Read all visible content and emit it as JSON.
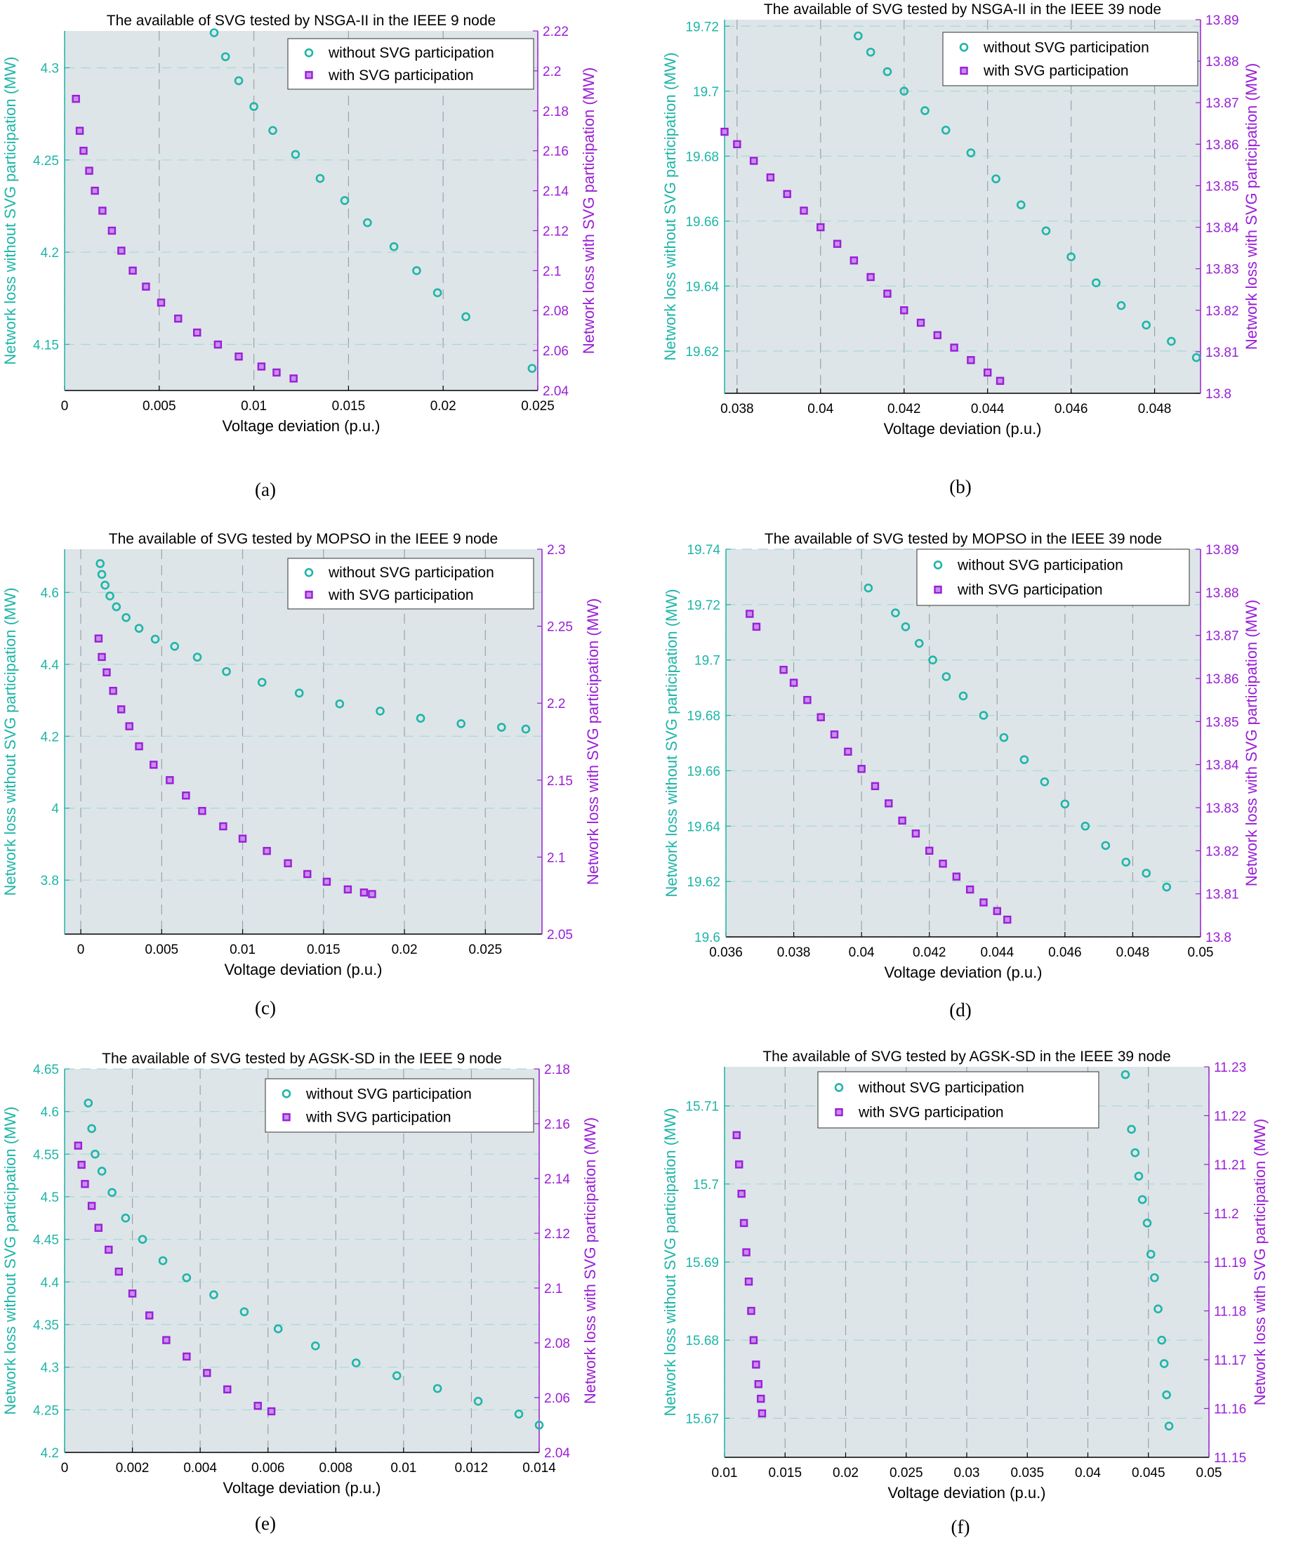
{
  "colors": {
    "without": "#1fb5a8",
    "with": "#9a1fd6",
    "plot_bg": "#dde5e8",
    "grid": "#9aa3a8"
  },
  "chart_data": [
    {
      "type": "scatter",
      "title": "The available of SVG tested by NSGA-II  in the IEEE 9 node",
      "caption": "(a)",
      "xlabel": "Voltage deviation (p.u.)",
      "ylabel_left": "Network loss without SVG participation (MW)",
      "ylabel_right": "Network loss with SVG participation (MW)",
      "xlim": [
        0,
        0.025
      ],
      "ylim_left": [
        4.125,
        4.32
      ],
      "ylim_right": [
        2.04,
        2.22
      ],
      "xticks": [
        "0",
        "0.005",
        "0.01",
        "0.015",
        "0.02",
        "0.025"
      ],
      "yticks_left": [
        "4.15",
        "4.2",
        "4.25",
        "4.3"
      ],
      "yticks_right": [
        "2.04",
        "2.06",
        "2.08",
        "2.1",
        "2.12",
        "2.14",
        "2.16",
        "2.18",
        "2.2",
        "2.22"
      ],
      "legend": [
        "without SVG participation",
        "with SVG participation"
      ],
      "series": [
        {
          "name": "without SVG participation",
          "axis": "left",
          "marker": "circle",
          "x": [
            0.0079,
            0.0085,
            0.0092,
            0.01,
            0.011,
            0.0122,
            0.0135,
            0.0148,
            0.016,
            0.0174,
            0.0186,
            0.0197,
            0.0212,
            0.0247
          ],
          "y": [
            4.319,
            4.306,
            4.293,
            4.279,
            4.266,
            4.253,
            4.24,
            4.228,
            4.216,
            4.203,
            4.19,
            4.178,
            4.165,
            4.137
          ]
        },
        {
          "name": "with SVG participation",
          "axis": "right",
          "marker": "square",
          "x": [
            0.0006,
            0.0008,
            0.001,
            0.0013,
            0.0016,
            0.002,
            0.0025,
            0.003,
            0.0036,
            0.0043,
            0.0051,
            0.006,
            0.007,
            0.0081,
            0.0092,
            0.0104,
            0.0112,
            0.0121
          ],
          "y": [
            2.186,
            2.17,
            2.16,
            2.15,
            2.14,
            2.13,
            2.12,
            2.11,
            2.1,
            2.092,
            2.084,
            2.076,
            2.069,
            2.063,
            2.057,
            2.052,
            2.049,
            2.046
          ]
        }
      ]
    },
    {
      "type": "scatter",
      "title": "The available of SVG tested by NSGA-II  in the IEEE 39 node",
      "caption": "(b)",
      "xlabel": "Voltage deviation (p.u.)",
      "ylabel_left": "Network loss without SVG participation (MW)",
      "ylabel_right": "Network loss with SVG participation (MW)",
      "xlim": [
        0.0377,
        0.0491
      ],
      "ylim_left": [
        19.607,
        19.722
      ],
      "ylim_right": [
        13.8,
        13.89
      ],
      "xticks": [
        "0.038",
        "0.04",
        "0.042",
        "0.044",
        "0.046",
        "0.048"
      ],
      "yticks_left": [
        "19.62",
        "19.64",
        "19.66",
        "19.68",
        "19.7",
        "19.72"
      ],
      "yticks_right": [
        "13.8",
        "13.81",
        "13.82",
        "13.83",
        "13.84",
        "13.85",
        "13.86",
        "13.87",
        "13.88",
        "13.89"
      ],
      "legend": [
        "without SVG participation",
        "with SVG participation"
      ],
      "series": [
        {
          "name": "without SVG participation",
          "axis": "left",
          "marker": "circle",
          "x": [
            0.0409,
            0.0412,
            0.0416,
            0.042,
            0.0425,
            0.043,
            0.0436,
            0.0442,
            0.0448,
            0.0454,
            0.046,
            0.0466,
            0.0472,
            0.0478,
            0.0484,
            0.049
          ],
          "y": [
            19.717,
            19.712,
            19.706,
            19.7,
            19.694,
            19.688,
            19.681,
            19.673,
            19.665,
            19.657,
            19.649,
            19.641,
            19.634,
            19.628,
            19.623,
            19.618
          ]
        },
        {
          "name": "with SVG participation",
          "axis": "right",
          "marker": "square",
          "x": [
            0.0377,
            0.038,
            0.0384,
            0.0388,
            0.0392,
            0.0396,
            0.04,
            0.0404,
            0.0408,
            0.0412,
            0.0416,
            0.042,
            0.0424,
            0.0428,
            0.0432,
            0.0436,
            0.044,
            0.0443
          ],
          "y": [
            13.863,
            13.86,
            13.856,
            13.852,
            13.848,
            13.844,
            13.84,
            13.836,
            13.832,
            13.828,
            13.824,
            13.82,
            13.817,
            13.814,
            13.811,
            13.808,
            13.805,
            13.803
          ]
        }
      ]
    },
    {
      "type": "scatter",
      "title": "The available of SVG tested by MOPSO  in the IEEE 9 node",
      "caption": "(c)",
      "xlabel": "Voltage deviation (p.u.)",
      "ylabel_left": "Network loss without SVG participation (MW)",
      "ylabel_right": "Network loss with SVG participation (MW)",
      "xlim": [
        -0.001,
        0.0285
      ],
      "ylim_left": [
        3.65,
        4.72
      ],
      "ylim_right": [
        2.05,
        2.3
      ],
      "xticks": [
        "0",
        "0.005",
        "0.01",
        "0.015",
        "0.02",
        "0.025"
      ],
      "yticks_left": [
        "3.8",
        "4",
        "4.2",
        "4.4",
        "4.6"
      ],
      "yticks_right": [
        "2.05",
        "2.1",
        "2.15",
        "2.2",
        "2.25",
        "2.3"
      ],
      "legend": [
        "without SVG participation",
        "with SVG participation"
      ],
      "series": [
        {
          "name": "without SVG participation",
          "axis": "left",
          "marker": "circle",
          "x": [
            0.0012,
            0.0013,
            0.0015,
            0.0018,
            0.0022,
            0.0028,
            0.0036,
            0.0046,
            0.0058,
            0.0072,
            0.009,
            0.0112,
            0.0135,
            0.016,
            0.0185,
            0.021,
            0.0235,
            0.026,
            0.0275
          ],
          "y": [
            4.68,
            4.65,
            4.62,
            4.59,
            4.56,
            4.53,
            4.5,
            4.47,
            4.45,
            4.42,
            4.38,
            4.35,
            4.32,
            4.29,
            4.27,
            4.25,
            4.235,
            4.225,
            4.22
          ]
        },
        {
          "name": "with SVG participation",
          "axis": "right",
          "marker": "square",
          "x": [
            0.0011,
            0.0013,
            0.0016,
            0.002,
            0.0025,
            0.003,
            0.0036,
            0.0045,
            0.0055,
            0.0065,
            0.0075,
            0.0088,
            0.01,
            0.0115,
            0.0128,
            0.014,
            0.0152,
            0.0165,
            0.0175,
            0.018
          ],
          "y": [
            2.242,
            2.23,
            2.22,
            2.208,
            2.196,
            2.185,
            2.172,
            2.16,
            2.15,
            2.14,
            2.13,
            2.12,
            2.112,
            2.104,
            2.096,
            2.089,
            2.084,
            2.079,
            2.077,
            2.076
          ]
        }
      ]
    },
    {
      "type": "scatter",
      "title": "The available of SVG tested by MOPSO  in the IEEE 39 node",
      "caption": "(d)",
      "xlabel": "Voltage deviation (p.u.)",
      "ylabel_left": "Network loss without SVG participation (MW)",
      "ylabel_right": "Network loss with SVG participation (MW)",
      "xlim": [
        0.036,
        0.05
      ],
      "ylim_left": [
        19.6,
        19.74
      ],
      "ylim_right": [
        13.8,
        13.89
      ],
      "xticks": [
        "0.036",
        "0.038",
        "0.04",
        "0.042",
        "0.044",
        "0.046",
        "0.048",
        "0.05"
      ],
      "yticks_left": [
        "19.6",
        "19.62",
        "19.64",
        "19.66",
        "19.68",
        "19.7",
        "19.72",
        "19.74"
      ],
      "yticks_right": [
        "13.8",
        "13.81",
        "13.82",
        "13.83",
        "13.84",
        "13.85",
        "13.86",
        "13.87",
        "13.88",
        "13.89"
      ],
      "legend": [
        "without SVG participation",
        "with SVG participation"
      ],
      "series": [
        {
          "name": "without SVG participation",
          "axis": "left",
          "marker": "circle",
          "x": [
            0.0402,
            0.041,
            0.0413,
            0.0417,
            0.0421,
            0.0425,
            0.043,
            0.0436,
            0.0442,
            0.0448,
            0.0454,
            0.046,
            0.0466,
            0.0472,
            0.0478,
            0.0484,
            0.049
          ],
          "y": [
            19.726,
            19.717,
            19.712,
            19.706,
            19.7,
            19.694,
            19.687,
            19.68,
            19.672,
            19.664,
            19.656,
            19.648,
            19.64,
            19.633,
            19.627,
            19.623,
            19.618
          ]
        },
        {
          "name": "with SVG participation",
          "axis": "right",
          "marker": "square",
          "x": [
            0.0367,
            0.0369,
            0.0377,
            0.038,
            0.0384,
            0.0388,
            0.0392,
            0.0396,
            0.04,
            0.0404,
            0.0408,
            0.0412,
            0.0416,
            0.042,
            0.0424,
            0.0428,
            0.0432,
            0.0436,
            0.044,
            0.0443
          ],
          "y": [
            13.875,
            13.872,
            13.862,
            13.859,
            13.855,
            13.851,
            13.847,
            13.843,
            13.839,
            13.835,
            13.831,
            13.827,
            13.824,
            13.82,
            13.817,
            13.814,
            13.811,
            13.808,
            13.806,
            13.804
          ]
        }
      ]
    },
    {
      "type": "scatter",
      "title": "The available of SVG tested by AGSK-SD  in the IEEE 9 node",
      "caption": "(e)",
      "xlabel": "Voltage deviation (p.u.)",
      "ylabel_left": "Network loss without SVG participation (MW)",
      "ylabel_right": "Network loss with SVG participation (MW)",
      "xlim": [
        0,
        0.014
      ],
      "ylim_left": [
        4.2,
        4.65
      ],
      "ylim_right": [
        2.04,
        2.18
      ],
      "xticks": [
        "0",
        "0.002",
        "0.004",
        "0.006",
        "0.008",
        "0.01",
        "0.012",
        "0.014"
      ],
      "yticks_left": [
        "4.2",
        "4.25",
        "4.3",
        "4.35",
        "4.4",
        "4.45",
        "4.5",
        "4.55",
        "4.6",
        "4.65"
      ],
      "yticks_right": [
        "2.04",
        "2.06",
        "2.08",
        "2.1",
        "2.12",
        "2.14",
        "2.16",
        "2.18"
      ],
      "legend": [
        "without SVG participation",
        "with SVG participation"
      ],
      "series": [
        {
          "name": "without SVG participation",
          "axis": "left",
          "marker": "circle",
          "x": [
            0.0007,
            0.0008,
            0.0009,
            0.0011,
            0.0014,
            0.0018,
            0.0023,
            0.0029,
            0.0036,
            0.0044,
            0.0053,
            0.0063,
            0.0074,
            0.0086,
            0.0098,
            0.011,
            0.0122,
            0.0134,
            0.014
          ],
          "y": [
            4.61,
            4.58,
            4.55,
            4.53,
            4.505,
            4.475,
            4.45,
            4.425,
            4.405,
            4.385,
            4.365,
            4.345,
            4.325,
            4.305,
            4.29,
            4.275,
            4.26,
            4.245,
            4.232
          ]
        },
        {
          "name": "with SVG participation",
          "axis": "right",
          "marker": "square",
          "x": [
            0.0004,
            0.0005,
            0.0006,
            0.0008,
            0.001,
            0.0013,
            0.0016,
            0.002,
            0.0025,
            0.003,
            0.0036,
            0.0042,
            0.0048,
            0.0057,
            0.0061
          ],
          "y": [
            2.152,
            2.145,
            2.138,
            2.13,
            2.122,
            2.114,
            2.106,
            2.098,
            2.09,
            2.081,
            2.075,
            2.069,
            2.063,
            2.057,
            2.055
          ]
        }
      ]
    },
    {
      "type": "scatter",
      "title": "The available of SVG tested by AGSK-SD  in the IEEE 39 node",
      "caption": "(f)",
      "xlabel": "Voltage deviation (p.u.)",
      "ylabel_left": "Network loss without SVG participation (MW)",
      "ylabel_right": "Network loss with SVG participation (MW)",
      "xlim": [
        0.01,
        0.05
      ],
      "ylim_left": [
        15.665,
        15.715
      ],
      "ylim_right": [
        11.15,
        11.23
      ],
      "xticks": [
        "0.01",
        "0.015",
        "0.02",
        "0.025",
        "0.03",
        "0.035",
        "0.04",
        "0.045",
        "0.05"
      ],
      "yticks_left": [
        "15.67",
        "15.68",
        "15.69",
        "15.7",
        "15.71"
      ],
      "yticks_right": [
        "11.15",
        "11.16",
        "11.17",
        "11.18",
        "11.19",
        "11.2",
        "11.21",
        "11.22",
        "11.23"
      ],
      "legend": [
        "without SVG participation",
        "with SVG participation"
      ],
      "series": [
        {
          "name": "without SVG participation",
          "axis": "left",
          "marker": "circle",
          "x": [
            0.0431,
            0.0436,
            0.0439,
            0.0442,
            0.0445,
            0.0449,
            0.0452,
            0.0455,
            0.0458,
            0.0461,
            0.0463,
            0.0465,
            0.0467
          ],
          "y": [
            15.714,
            15.707,
            15.704,
            15.701,
            15.698,
            15.695,
            15.691,
            15.688,
            15.684,
            15.68,
            15.677,
            15.673,
            15.669
          ]
        },
        {
          "name": "with SVG participation",
          "axis": "right",
          "marker": "square",
          "x": [
            0.011,
            0.0112,
            0.0114,
            0.0116,
            0.0118,
            0.012,
            0.0122,
            0.0124,
            0.0126,
            0.0128,
            0.013,
            0.0131
          ],
          "y": [
            11.216,
            11.21,
            11.204,
            11.198,
            11.192,
            11.186,
            11.18,
            11.174,
            11.169,
            11.165,
            11.162,
            11.159
          ]
        }
      ]
    }
  ]
}
